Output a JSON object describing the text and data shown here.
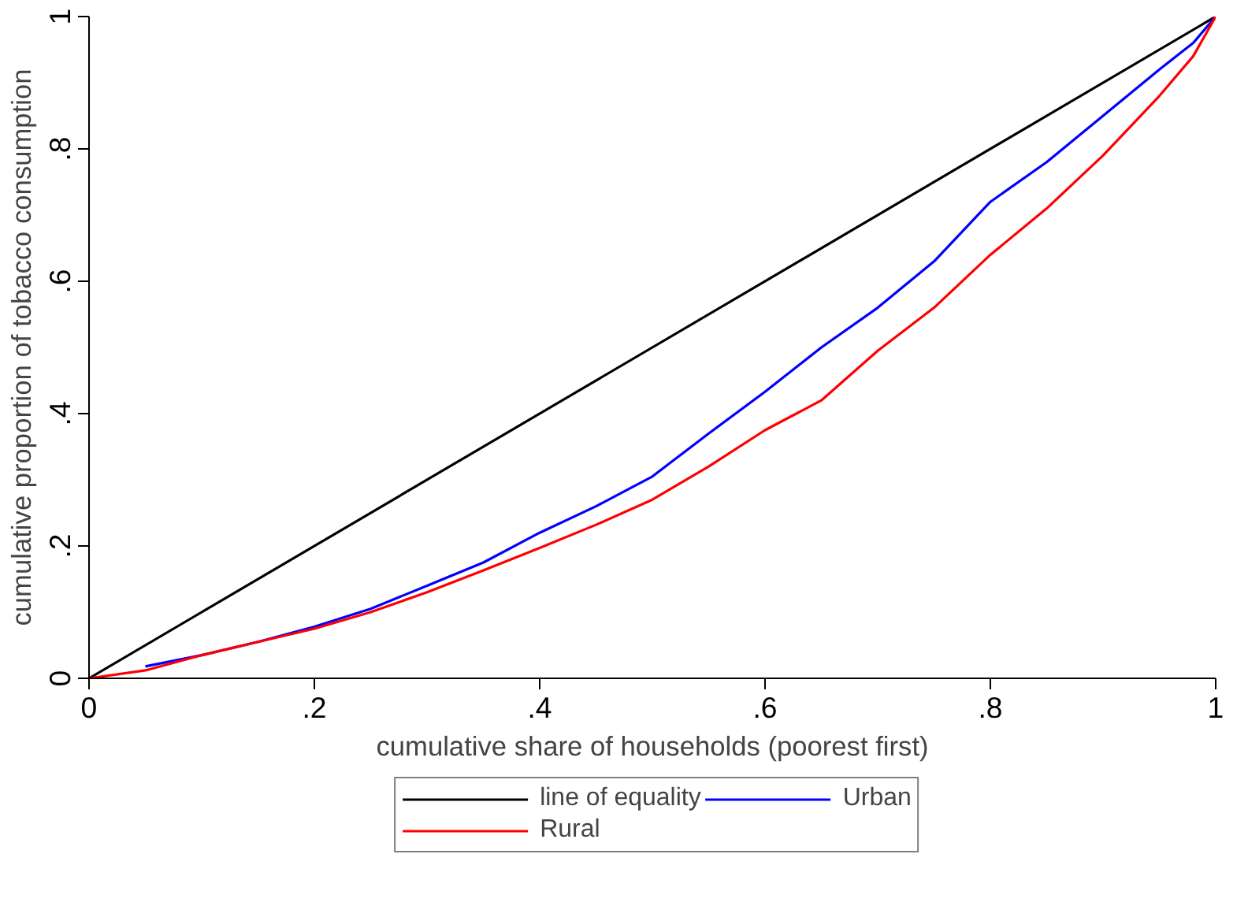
{
  "chart_data": {
    "type": "line",
    "xlabel": "cumulative share of households (poorest first)",
    "ylabel": "cumulative proportion of tobacco consumption",
    "xlim": [
      0,
      1
    ],
    "ylim": [
      0,
      1
    ],
    "xticks": [
      {
        "value": 0,
        "label": "0"
      },
      {
        "value": 0.2,
        "label": ".2"
      },
      {
        "value": 0.4,
        "label": ".4"
      },
      {
        "value": 0.6,
        "label": ".6"
      },
      {
        "value": 0.8,
        "label": ".8"
      },
      {
        "value": 1,
        "label": "1"
      }
    ],
    "yticks": [
      {
        "value": 0,
        "label": "0"
      },
      {
        "value": 0.2,
        "label": ".2"
      },
      {
        "value": 0.4,
        "label": ".4"
      },
      {
        "value": 0.6,
        "label": ".6"
      },
      {
        "value": 0.8,
        "label": ".8"
      },
      {
        "value": 1,
        "label": "1"
      }
    ],
    "grid": false,
    "legend": "bottom",
    "line_style": "solid",
    "marker": "none",
    "series": [
      {
        "name": "line of equality",
        "color": "#000000",
        "x": [
          0,
          1
        ],
        "values": [
          0,
          1
        ]
      },
      {
        "name": "Urban",
        "color": "#0000ff",
        "x": [
          0.05,
          0.1,
          0.15,
          0.2,
          0.25,
          0.3,
          0.35,
          0.4,
          0.45,
          0.5,
          0.55,
          0.6,
          0.65,
          0.7,
          0.75,
          0.8,
          0.85,
          0.9,
          0.95,
          0.98,
          1
        ],
        "values": [
          0.018,
          0.035,
          0.055,
          0.078,
          0.105,
          0.14,
          0.175,
          0.22,
          0.26,
          0.305,
          0.37,
          0.433,
          0.5,
          0.56,
          0.63,
          0.72,
          0.78,
          0.85,
          0.92,
          0.96,
          1
        ]
      },
      {
        "name": "Rural",
        "color": "#ff0000",
        "x": [
          0,
          0.05,
          0.1,
          0.15,
          0.2,
          0.25,
          0.3,
          0.35,
          0.4,
          0.45,
          0.5,
          0.55,
          0.6,
          0.65,
          0.7,
          0.75,
          0.8,
          0.85,
          0.9,
          0.95,
          0.98,
          1
        ],
        "values": [
          0,
          0.012,
          0.035,
          0.055,
          0.075,
          0.1,
          0.13,
          0.163,
          0.197,
          0.232,
          0.27,
          0.32,
          0.375,
          0.42,
          0.495,
          0.56,
          0.64,
          0.71,
          0.79,
          0.88,
          0.94,
          1
        ]
      }
    ]
  }
}
